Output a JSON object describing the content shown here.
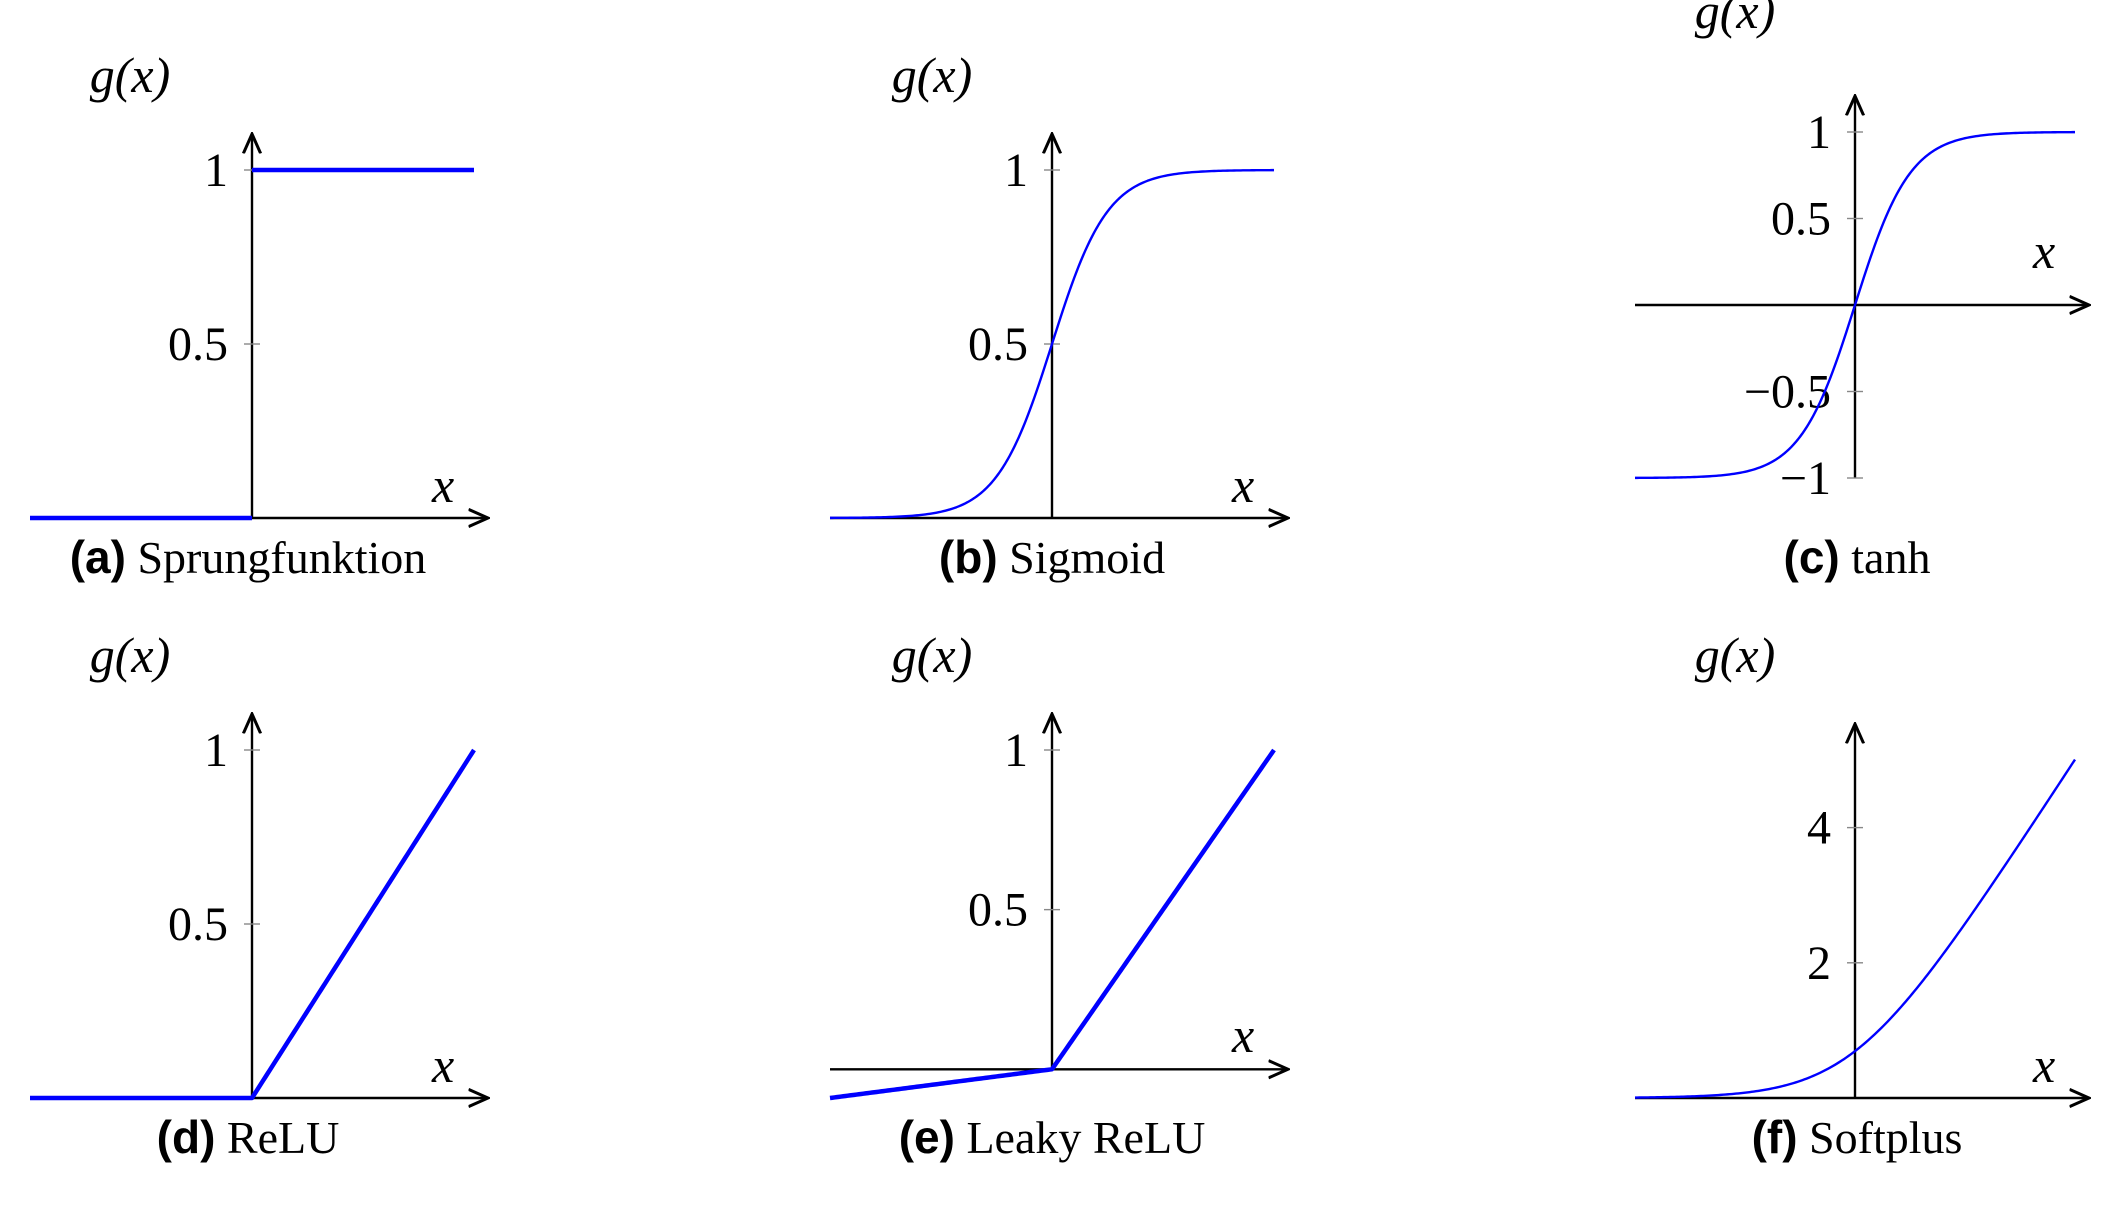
{
  "chart_data": [
    {
      "type": "line",
      "tag": "(a)",
      "caption": "Sprungfunktion",
      "function": "step",
      "xlabel": "x",
      "ylabel": "g(x)",
      "xlim": [
        -2,
        2
      ],
      "ylim": [
        0,
        1
      ],
      "yticks": [
        {
          "value": 0.5,
          "label": "0.5"
        },
        {
          "value": 1,
          "label": "1"
        }
      ],
      "series": [
        {
          "x": [
            -2,
            0,
            0,
            2
          ],
          "y": [
            0,
            0,
            1,
            1
          ]
        }
      ],
      "color": "#0000ff"
    },
    {
      "type": "line",
      "tag": "(b)",
      "caption": "Sigmoid",
      "function": "sigmoid",
      "xlabel": "x",
      "ylabel": "g(x)",
      "xlim": [
        -8,
        8
      ],
      "ylim": [
        0,
        1
      ],
      "yticks": [
        {
          "value": 0.5,
          "label": "0.5"
        },
        {
          "value": 1,
          "label": "1"
        }
      ],
      "series": [
        {
          "x": [
            -8,
            -4,
            -2,
            0,
            2,
            4,
            8
          ],
          "y": [
            0.0003,
            0.018,
            0.119,
            0.5,
            0.881,
            0.982,
            0.9997
          ]
        }
      ],
      "color": "#0000ff"
    },
    {
      "type": "line",
      "tag": "(c)",
      "caption": "tanh",
      "function": "tanh",
      "xlabel": "x",
      "ylabel": "g(x)",
      "xlim": [
        -4,
        4
      ],
      "ylim": [
        -1,
        1
      ],
      "yticks": [
        {
          "value": -1,
          "label": "−1"
        },
        {
          "value": -0.5,
          "label": "−0.5"
        },
        {
          "value": 0.5,
          "label": "0.5"
        },
        {
          "value": 1,
          "label": "1"
        }
      ],
      "series": [
        {
          "x": [
            -4,
            -2,
            -1,
            0,
            1,
            2,
            4
          ],
          "y": [
            -0.999,
            -0.964,
            -0.762,
            0,
            0.762,
            0.964,
            0.999
          ]
        }
      ],
      "color": "#0000ff"
    },
    {
      "type": "line",
      "tag": "(d)",
      "caption": "ReLU",
      "function": "relu",
      "xlabel": "x",
      "ylabel": "g(x)",
      "xlim": [
        -1,
        1
      ],
      "ylim": [
        0,
        1
      ],
      "yticks": [
        {
          "value": 0.5,
          "label": "0.5"
        },
        {
          "value": 1,
          "label": "1"
        }
      ],
      "series": [
        {
          "x": [
            -1,
            0,
            1
          ],
          "y": [
            0,
            0,
            1
          ]
        }
      ],
      "color": "#0000ff"
    },
    {
      "type": "line",
      "tag": "(e)",
      "caption": "Leaky ReLU",
      "function": "leaky_relu",
      "xlabel": "x",
      "ylabel": "g(x)",
      "xlim": [
        -1,
        1
      ],
      "ylim": [
        -0.09,
        1
      ],
      "yticks": [
        {
          "value": 0.5,
          "label": "0.5"
        },
        {
          "value": 1,
          "label": "1"
        }
      ],
      "series": [
        {
          "x": [
            -1,
            0,
            1
          ],
          "y": [
            -0.09,
            0,
            1
          ]
        }
      ],
      "color": "#0000ff"
    },
    {
      "type": "line",
      "tag": "(f)",
      "caption": "Softplus",
      "function": "softplus",
      "xlabel": "x",
      "ylabel": "g(x)",
      "xlim": [
        -5,
        5
      ],
      "ylim": [
        0,
        5
      ],
      "yticks": [
        {
          "value": 2,
          "label": "2"
        },
        {
          "value": 4,
          "label": "4"
        }
      ],
      "series": [
        {
          "x": [
            -5,
            -2,
            0,
            2,
            5
          ],
          "y": [
            0.007,
            0.127,
            0.693,
            2.127,
            5.007
          ]
        }
      ],
      "color": "#0000ff"
    }
  ]
}
